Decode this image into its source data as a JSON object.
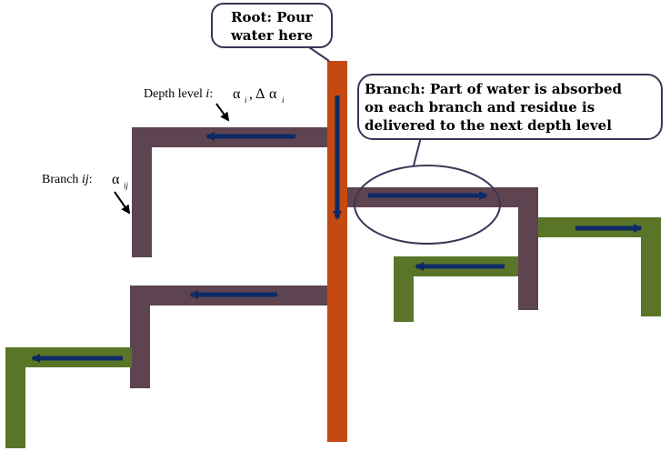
{
  "colors": {
    "root": "#c44a12",
    "branch": "#5e4450",
    "leaf": "#5a7528",
    "arrow": "#0d2a66",
    "callout_border": "#3b3556",
    "background": "#ffffff"
  },
  "root_callout": {
    "line1": "Root: Pour",
    "line2": "water here"
  },
  "branch_callout": {
    "line1": "Branch: Part of water is absorbed",
    "line2": "on each branch and residue is",
    "line3": "delivered to the next depth level"
  },
  "depth_label": {
    "prefix": "Depth level ",
    "var": "i",
    "colon": ":",
    "alpha1": "α",
    "sub1": "i",
    "sep": ", Δ",
    "alpha2": "α",
    "sub2": "i"
  },
  "branch_label": {
    "prefix": "Branch ",
    "var": "ij",
    "colon": ":",
    "alpha": "α",
    "sub": "ij"
  }
}
